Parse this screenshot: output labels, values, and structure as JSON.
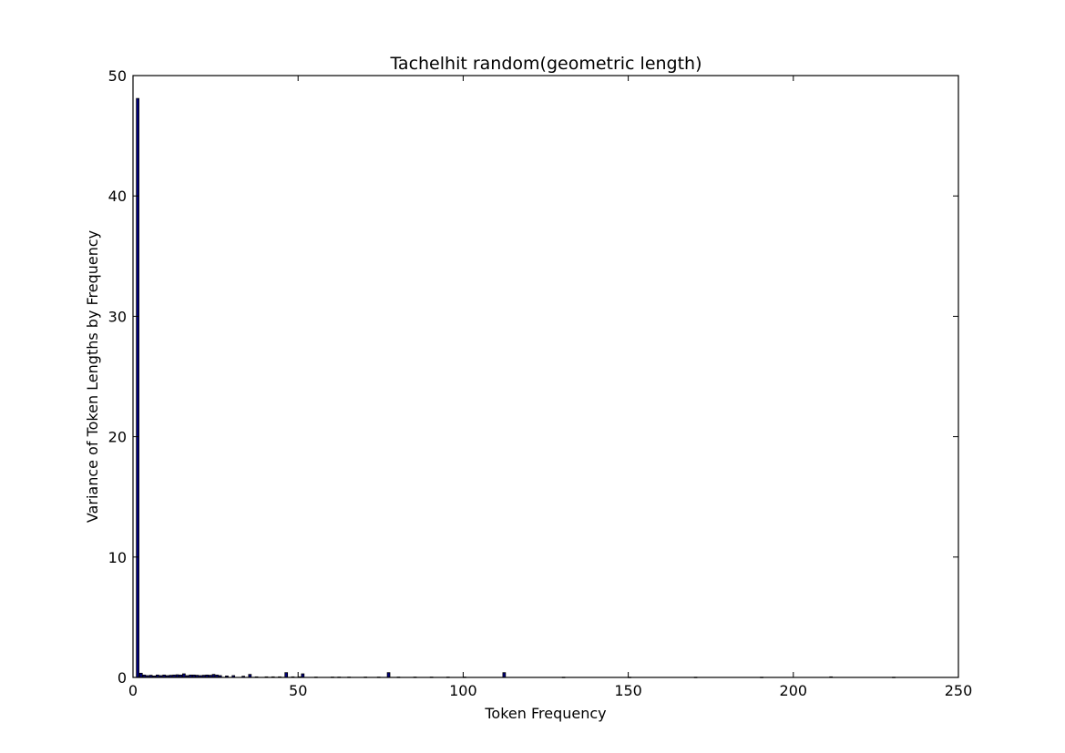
{
  "chart_data": {
    "type": "bar",
    "title": "Tachelhit random(geometric length)",
    "xlabel": "Token Frequency",
    "ylabel": "Variance of Token Lengths by Frequency",
    "xlim": [
      0,
      250
    ],
    "ylim": [
      0,
      50
    ],
    "xticks": [
      0,
      50,
      100,
      150,
      200,
      250
    ],
    "yticks": [
      0,
      10,
      20,
      30,
      40,
      50
    ],
    "bar_color": "#00007f",
    "bar_edge_color": "#000000",
    "grid": false,
    "legend": "none",
    "x": [
      1,
      2,
      3,
      4,
      5,
      6,
      7,
      8,
      9,
      10,
      11,
      12,
      13,
      14,
      15,
      16,
      17,
      18,
      19,
      20,
      21,
      22,
      23,
      24,
      25,
      26,
      28,
      30,
      33,
      35,
      37,
      40,
      42,
      44,
      46,
      48,
      50,
      51,
      55,
      60,
      62,
      65,
      70,
      74,
      77,
      80,
      85,
      90,
      95,
      100,
      112,
      130,
      150,
      170,
      190,
      211,
      230
    ],
    "values": [
      48.1,
      0.35,
      0.2,
      0.15,
      0.18,
      0.12,
      0.2,
      0.15,
      0.2,
      0.15,
      0.18,
      0.2,
      0.22,
      0.2,
      0.3,
      0.15,
      0.2,
      0.2,
      0.18,
      0.15,
      0.18,
      0.2,
      0.18,
      0.25,
      0.2,
      0.15,
      0.12,
      0.15,
      0.1,
      0.25,
      0.05,
      0.05,
      0.05,
      0.05,
      0.4,
      0.05,
      0.05,
      0.3,
      0.03,
      0.03,
      0.03,
      0.03,
      0.03,
      0.03,
      0.4,
      0.03,
      0.03,
      0.03,
      0.03,
      0.03,
      0.4,
      0.02,
      0.02,
      0.02,
      0.02,
      0.05,
      0.02
    ]
  }
}
